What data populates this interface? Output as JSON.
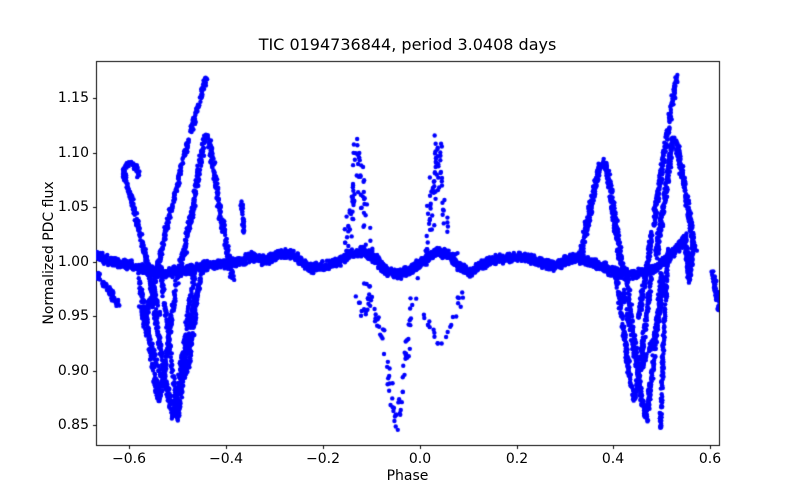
{
  "chart_data": {
    "type": "scatter",
    "title": "TIC 0194736844, period 3.0408 days",
    "xlabel": "Phase",
    "ylabel": "Normalized PDC flux",
    "xlim": [
      -0.669,
      0.618
    ],
    "ylim": [
      0.832,
      1.184
    ],
    "grid": false,
    "legend": false,
    "marker_color": "#0000ff",
    "marker_radius": 2.2,
    "x_ticks": [
      {
        "value": -0.6,
        "label": "−0.6"
      },
      {
        "value": -0.4,
        "label": "−0.4"
      },
      {
        "value": -0.2,
        "label": "−0.2"
      },
      {
        "value": 0.0,
        "label": "0.0"
      },
      {
        "value": 0.2,
        "label": "0.2"
      },
      {
        "value": 0.4,
        "label": "0.4"
      },
      {
        "value": 0.6,
        "label": "0.6"
      }
    ],
    "y_ticks": [
      {
        "value": 0.85,
        "label": "0.85"
      },
      {
        "value": 0.9,
        "label": "0.90"
      },
      {
        "value": 0.95,
        "label": "0.95"
      },
      {
        "value": 1.0,
        "label": "1.00"
      },
      {
        "value": 1.05,
        "label": "1.05"
      },
      {
        "value": 1.1,
        "label": "1.10"
      },
      {
        "value": 1.15,
        "label": "1.15"
      }
    ],
    "series": [
      {
        "name": "main-band",
        "n": 2800,
        "jx": 0.004,
        "jy": 0.0052,
        "pts": [
          [
            -0.669,
            1.006
          ],
          [
            -0.64,
            1.001
          ],
          [
            -0.61,
            0.998
          ],
          [
            -0.58,
            0.994
          ],
          [
            -0.55,
            0.991
          ],
          [
            -0.52,
            0.99
          ],
          [
            -0.49,
            0.992
          ],
          [
            -0.46,
            0.995
          ],
          [
            -0.43,
            0.997
          ],
          [
            -0.4,
            0.998
          ],
          [
            -0.37,
            1.001
          ],
          [
            -0.345,
            1.005
          ],
          [
            -0.32,
            1.001
          ],
          [
            -0.295,
            1.006
          ],
          [
            -0.27,
            1.008
          ],
          [
            -0.245,
            1.0
          ],
          [
            -0.22,
            0.994
          ],
          [
            -0.195,
            0.996
          ],
          [
            -0.17,
            1.0
          ],
          [
            -0.145,
            1.006
          ],
          [
            -0.12,
            1.01
          ],
          [
            -0.095,
            1.004
          ],
          [
            -0.07,
            0.992
          ],
          [
            -0.045,
            0.988
          ],
          [
            -0.02,
            0.993
          ],
          [
            0.005,
            1.0
          ],
          [
            0.03,
            1.008
          ],
          [
            0.055,
            1.008
          ],
          [
            0.08,
            0.996
          ],
          [
            0.105,
            0.99
          ],
          [
            0.13,
            0.998
          ],
          [
            0.155,
            1.002
          ],
          [
            0.18,
            1.003
          ],
          [
            0.205,
            1.004
          ],
          [
            0.23,
            1.002
          ],
          [
            0.255,
            0.998
          ],
          [
            0.28,
            0.996
          ],
          [
            0.305,
            1.002
          ],
          [
            0.33,
            1.004
          ],
          [
            0.355,
            1.0
          ],
          [
            0.38,
            0.995
          ],
          [
            0.405,
            0.99
          ],
          [
            0.43,
            0.988
          ],
          [
            0.455,
            0.99
          ],
          [
            0.48,
            0.992
          ],
          [
            0.505,
            1.0
          ],
          [
            0.522,
            1.008
          ],
          [
            0.538,
            1.015
          ],
          [
            0.545,
            1.02
          ]
        ]
      },
      {
        "name": "left-edge-arc",
        "n": 70,
        "jx": 0.004,
        "jy": 0.0045,
        "pts": [
          [
            -0.668,
            0.99
          ],
          [
            -0.652,
            0.98
          ],
          [
            -0.636,
            0.97
          ],
          [
            -0.622,
            0.958
          ]
        ]
      },
      {
        "name": "left-hook",
        "n": 240,
        "jx": 0.0045,
        "jy": 0.004,
        "pts": [
          [
            -0.538,
            0.952
          ],
          [
            -0.556,
            0.985
          ],
          [
            -0.578,
            1.025
          ],
          [
            -0.597,
            1.06
          ],
          [
            -0.612,
            1.082
          ],
          [
            -0.604,
            1.091
          ],
          [
            -0.59,
            1.089
          ],
          [
            -0.581,
            1.079
          ]
        ]
      },
      {
        "name": "left-spike",
        "n": 300,
        "jx": 0.0045,
        "jy": 0.003,
        "pts": [
          [
            -0.57,
            0.94
          ],
          [
            -0.53,
            1.018
          ],
          [
            -0.488,
            1.095
          ],
          [
            -0.44,
            1.171
          ]
        ]
      },
      {
        "name": "left-lambda",
        "n": 380,
        "jx": 0.0055,
        "jy": 0.004,
        "pts": [
          [
            -0.498,
            0.985
          ],
          [
            -0.468,
            1.052
          ],
          [
            -0.444,
            1.114
          ],
          [
            -0.436,
            1.114
          ],
          [
            -0.412,
            1.045
          ],
          [
            -0.388,
            0.985
          ]
        ]
      },
      {
        "name": "left-stub",
        "n": 26,
        "jx": 0.003,
        "jy": 0.0045,
        "pts": [
          [
            -0.37,
            1.062
          ],
          [
            -0.363,
            1.028
          ]
        ]
      },
      {
        "name": "left-v1",
        "n": 300,
        "jx": 0.0045,
        "jy": 0.0035,
        "pts": [
          [
            -0.58,
            0.985
          ],
          [
            -0.552,
            0.905
          ],
          [
            -0.54,
            0.872
          ],
          [
            -0.528,
            0.898
          ],
          [
            -0.505,
            0.975
          ],
          [
            -0.495,
            0.995
          ]
        ]
      },
      {
        "name": "left-v2",
        "n": 300,
        "jx": 0.0045,
        "jy": 0.0035,
        "pts": [
          [
            -0.56,
            0.99
          ],
          [
            -0.522,
            0.88
          ],
          [
            -0.51,
            0.8575
          ],
          [
            -0.498,
            0.885
          ],
          [
            -0.478,
            0.955
          ],
          [
            -0.465,
            0.992
          ]
        ]
      },
      {
        "name": "left-v3",
        "n": 260,
        "jx": 0.0035,
        "jy": 0.003,
        "pts": [
          [
            -0.536,
            0.995
          ],
          [
            -0.512,
            0.905
          ],
          [
            -0.5,
            0.8565
          ],
          [
            -0.47,
            0.955
          ],
          [
            -0.444,
            0.999
          ]
        ]
      },
      {
        "name": "left-v-cross",
        "n": 220,
        "jx": 0.0045,
        "jy": 0.0035,
        "pts": [
          [
            -0.578,
            0.96
          ],
          [
            -0.535,
            0.895
          ],
          [
            -0.507,
            0.87
          ],
          [
            -0.478,
            0.905
          ],
          [
            -0.458,
            0.975
          ]
        ]
      },
      {
        "name": "mid-left-sparse-peak",
        "n": 75,
        "jx": 0.01,
        "jy": 0.009,
        "pts": [
          [
            -0.152,
            1.008
          ],
          [
            -0.138,
            1.055
          ],
          [
            -0.128,
            1.11
          ],
          [
            -0.12,
            1.062
          ],
          [
            -0.104,
            1.01
          ]
        ]
      },
      {
        "name": "mid-right-sparse-peak",
        "n": 80,
        "jx": 0.01,
        "jy": 0.009,
        "pts": [
          [
            0.012,
            1.008
          ],
          [
            0.026,
            1.058
          ],
          [
            0.036,
            1.112
          ],
          [
            0.047,
            1.058
          ],
          [
            0.062,
            1.012
          ],
          [
            0.075,
            1.002
          ]
        ]
      },
      {
        "name": "mid-funnel-left",
        "n": 42,
        "jx": 0.009,
        "jy": 0.007,
        "pts": [
          [
            -0.112,
            0.982
          ],
          [
            -0.085,
            0.945
          ],
          [
            -0.066,
            0.902
          ],
          [
            -0.056,
            0.862
          ],
          [
            -0.05,
            0.8475
          ]
        ]
      },
      {
        "name": "mid-funnel-right",
        "n": 30,
        "jx": 0.007,
        "jy": 0.007,
        "pts": [
          [
            -0.042,
            0.852
          ],
          [
            -0.032,
            0.9
          ],
          [
            -0.02,
            0.95
          ],
          [
            -0.008,
            0.982
          ]
        ]
      },
      {
        "name": "mid-below-band-left",
        "n": 15,
        "jx": 0.007,
        "jy": 0.007,
        "pts": [
          [
            -0.14,
            0.978
          ],
          [
            -0.125,
            0.962
          ],
          [
            -0.112,
            0.95
          ],
          [
            -0.1,
            0.968
          ]
        ]
      },
      {
        "name": "mid-below-band-right",
        "n": 24,
        "jx": 0.008,
        "jy": 0.007,
        "pts": [
          [
            0.005,
            0.955
          ],
          [
            0.028,
            0.932
          ],
          [
            0.05,
            0.922
          ],
          [
            0.07,
            0.952
          ],
          [
            0.09,
            0.974
          ]
        ]
      },
      {
        "name": "right-round-peak",
        "n": 420,
        "jx": 0.0055,
        "jy": 0.004,
        "pts": [
          [
            0.33,
            1.0
          ],
          [
            0.352,
            1.048
          ],
          [
            0.37,
            1.085
          ],
          [
            0.381,
            1.092
          ],
          [
            0.392,
            1.072
          ],
          [
            0.408,
            1.022
          ],
          [
            0.42,
            0.988
          ]
        ]
      },
      {
        "name": "right-spike",
        "n": 300,
        "jx": 0.0045,
        "jy": 0.003,
        "pts": [
          [
            0.452,
            0.948
          ],
          [
            0.492,
            1.062
          ],
          [
            0.531,
            1.172
          ]
        ]
      },
      {
        "name": "right-lambda",
        "n": 380,
        "jx": 0.005,
        "jy": 0.004,
        "pts": [
          [
            0.488,
            1.005
          ],
          [
            0.508,
            1.065
          ],
          [
            0.522,
            1.112
          ],
          [
            0.53,
            1.11
          ],
          [
            0.552,
            1.055
          ],
          [
            0.568,
            1.01
          ]
        ]
      },
      {
        "name": "right-v1",
        "n": 300,
        "jx": 0.0045,
        "jy": 0.0035,
        "pts": [
          [
            0.405,
            0.99
          ],
          [
            0.432,
            0.9
          ],
          [
            0.443,
            0.873
          ],
          [
            0.456,
            0.905
          ],
          [
            0.478,
            0.985
          ]
        ]
      },
      {
        "name": "right-v2",
        "n": 300,
        "jx": 0.0045,
        "jy": 0.0035,
        "pts": [
          [
            0.425,
            0.992
          ],
          [
            0.455,
            0.885
          ],
          [
            0.468,
            0.8545
          ],
          [
            0.482,
            0.905
          ],
          [
            0.5,
            0.992
          ]
        ]
      },
      {
        "name": "right-v-narrow",
        "n": 150,
        "jx": 0.003,
        "jy": 0.003,
        "pts": [
          [
            0.513,
            1.015
          ],
          [
            0.504,
            0.93
          ],
          [
            0.4965,
            0.845
          ]
        ]
      },
      {
        "name": "right-v-cross",
        "n": 200,
        "jx": 0.0045,
        "jy": 0.0035,
        "pts": [
          [
            0.418,
            0.975
          ],
          [
            0.452,
            0.898
          ],
          [
            0.486,
            0.93
          ],
          [
            0.505,
            0.985
          ]
        ]
      },
      {
        "name": "right-hump",
        "n": 150,
        "jx": 0.004,
        "jy": 0.006,
        "pts": [
          [
            0.548,
            1.026
          ],
          [
            0.552,
            1.005
          ],
          [
            0.556,
            0.985
          ],
          [
            0.561,
            1.0
          ],
          [
            0.566,
            1.018
          ]
        ]
      },
      {
        "name": "right-edge-arc",
        "n": 55,
        "jx": 0.0035,
        "jy": 0.006,
        "pts": [
          [
            0.604,
            0.992
          ],
          [
            0.61,
            0.978
          ],
          [
            0.617,
            0.958
          ]
        ]
      }
    ]
  }
}
